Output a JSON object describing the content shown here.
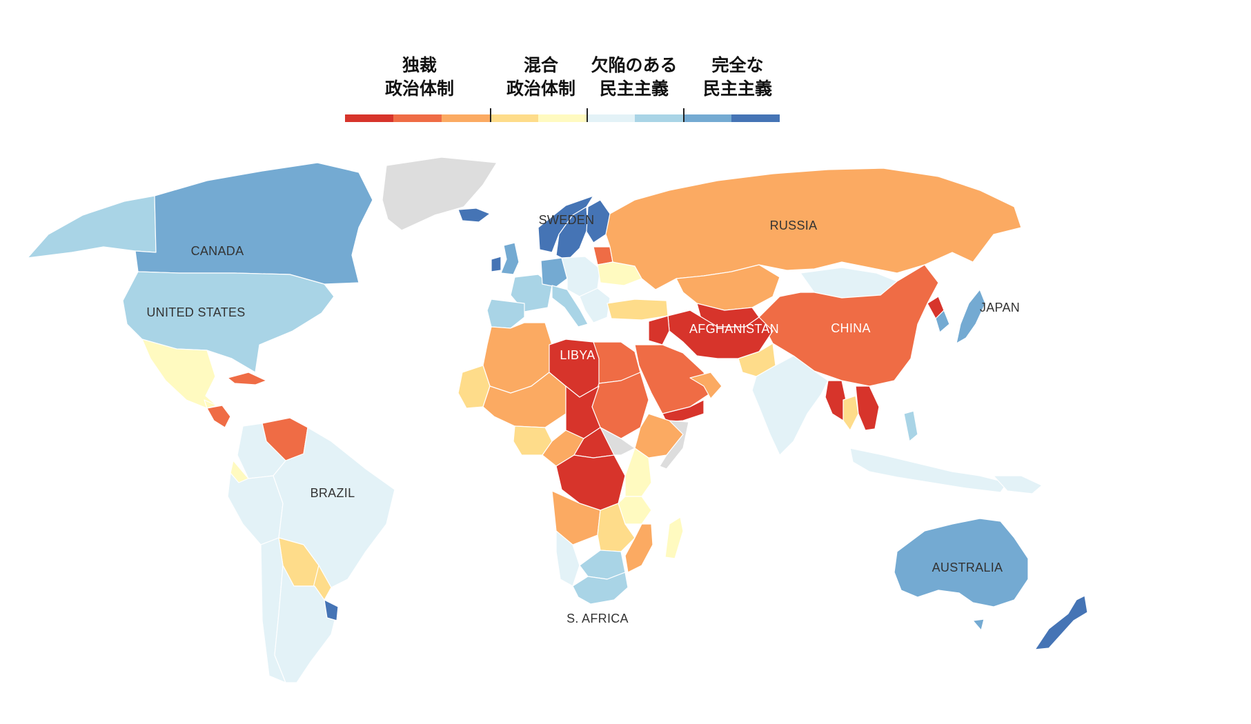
{
  "legend": {
    "categories": [
      {
        "label": "独裁\n政治体制"
      },
      {
        "label": "混合\n政治体制"
      },
      {
        "label": "欠陥のある\n民主主義"
      },
      {
        "label": "完全な\n民主主義"
      }
    ],
    "colors": [
      "#d7342b",
      "#ef6c45",
      "#fbaa62",
      "#fedc8a",
      "#fffac0",
      "#e3f2f7",
      "#a9d4e6",
      "#74aad2",
      "#4574b5"
    ]
  },
  "labels": {
    "canada": "CANADA",
    "united_states": "UNITED STATES",
    "brazil": "BRAZIL",
    "sweden": "SWEDEN",
    "russia": "RUSSIA",
    "libya": "LIBYA",
    "afghanistan": "AFGHANISTAN",
    "china": "CHINA",
    "japan": "JAPAN",
    "australia": "AUSTRALIA",
    "s_africa": "S. AFRICA"
  },
  "colors": {
    "full_democracy": "#4574b5",
    "flawed_democracy_high": "#74aad2",
    "flawed_democracy_mid": "#a9d4e6",
    "flawed_democracy_low": "#e3f2f7",
    "hybrid_high": "#fffac0",
    "hybrid_low": "#fedc8a",
    "authoritarian_high": "#fbaa62",
    "authoritarian_mid": "#ef6c45",
    "authoritarian_low": "#d7342b",
    "no_data": "#dddddd"
  }
}
